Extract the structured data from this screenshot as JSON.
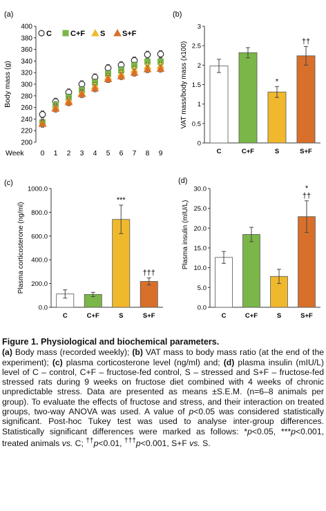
{
  "chart_data": [
    {
      "panel": "(a)",
      "type": "line",
      "ylabel": "Body mass (g)",
      "xlabel": "Week",
      "ylim": [
        200,
        400
      ],
      "yticks": [
        "200",
        "220",
        "240",
        "260",
        "280",
        "300",
        "320",
        "340",
        "360",
        "380",
        "400"
      ],
      "x": [
        0,
        1,
        2,
        3,
        4,
        5,
        6,
        7,
        8,
        9
      ],
      "legend_position": "top-left",
      "series": [
        {
          "name": "C",
          "marker": "circle",
          "color": "#ffffff",
          "stroke": "#333333",
          "values": [
            248,
            270,
            286,
            300,
            312,
            328,
            333,
            341,
            351,
            352
          ],
          "errors": [
            6,
            6,
            6,
            6,
            6,
            6,
            6,
            6,
            6,
            6
          ]
        },
        {
          "name": "C+F",
          "marker": "square",
          "color": "#7ab648",
          "stroke": "#7ab648",
          "values": [
            234,
            264,
            277,
            290,
            303,
            318,
            324,
            332,
            339,
            339
          ],
          "errors": [
            6,
            6,
            6,
            6,
            6,
            6,
            6,
            6,
            6,
            6
          ]
        },
        {
          "name": "S",
          "marker": "triangle",
          "color": "#f0b92d",
          "stroke": "#f0b92d",
          "values": [
            232,
            260,
            272,
            285,
            297,
            312,
            318,
            325,
            331,
            332
          ],
          "errors": [
            6,
            6,
            6,
            6,
            6,
            6,
            6,
            6,
            6,
            6
          ]
        },
        {
          "name": "S+F",
          "marker": "triangle",
          "color": "#d8702b",
          "stroke": "#d8702b",
          "values": [
            232,
            258,
            269,
            283,
            293,
            309,
            314,
            320,
            326,
            327
          ],
          "errors": [
            6,
            6,
            6,
            6,
            6,
            6,
            6,
            6,
            6,
            6
          ]
        }
      ]
    },
    {
      "panel": "(b)",
      "type": "bar",
      "ylabel": "VAT mass/body mass (x100)",
      "ylim": [
        0,
        3
      ],
      "yticks": [
        "0",
        "0.5",
        "1",
        "1.5",
        "2",
        "2.5",
        "3"
      ],
      "categories": [
        "C",
        "C+F",
        "S",
        "S+F"
      ],
      "values": [
        1.98,
        2.32,
        1.31,
        2.24
      ],
      "errors": [
        0.17,
        0.13,
        0.14,
        0.24
      ],
      "colors": [
        "#ffffff",
        "#7ab648",
        "#f0b92d",
        "#d8702b"
      ],
      "annotations": [
        "",
        "",
        "*",
        "††"
      ]
    },
    {
      "panel": "(c)",
      "type": "bar",
      "ylabel": "Plasma corticosterone (ng/ml)",
      "ylim": [
        0,
        1000
      ],
      "yticks": [
        "0.0",
        "200.0",
        "400.0",
        "600.0",
        "800.0",
        "1000.0"
      ],
      "categories": [
        "C",
        "C+F",
        "S",
        "S+F"
      ],
      "values": [
        112,
        108,
        740,
        218
      ],
      "errors": [
        35,
        18,
        120,
        30
      ],
      "colors": [
        "#ffffff",
        "#7ab648",
        "#f0b92d",
        "#d8702b"
      ],
      "annotations": [
        "",
        "",
        "***",
        "†††"
      ]
    },
    {
      "panel": "(d)",
      "type": "bar",
      "ylabel": "Plasma insulin (mIU/L)",
      "ylim": [
        0,
        30
      ],
      "yticks": [
        "0.0",
        "5.0",
        "10.0",
        "15.0",
        "20.0",
        "25.0",
        "30.0"
      ],
      "categories": [
        "C",
        "C+F",
        "S",
        "S+F"
      ],
      "values": [
        12.6,
        18.4,
        7.8,
        22.9
      ],
      "errors": [
        1.5,
        1.8,
        1.8,
        4.0
      ],
      "colors": [
        "#ffffff",
        "#7ab648",
        "#f0b92d",
        "#d8702b"
      ],
      "annotations": [
        "",
        "",
        "",
        "*\n††"
      ]
    }
  ],
  "caption": {
    "title": "Figure 1. Physiological and biochemical parameters.",
    "label_a": "(a)",
    "text_a": " Body mass (recorded weekly); ",
    "label_b": "(b)",
    "text_b": " VAT mass to body mass ratio (at the end of the experiment); ",
    "label_c": "(c)",
    "text_c": " plasma corticosterone level (ng/ml) and; ",
    "label_d": "(d)",
    "text_d": " plasma insulin (mIU/L) level of C – control, C+F – fructose-fed control, S – stressed and S+F – fructose-fed stressed rats during 9 weeks on fructose diet combined with 4 weeks of chronic unpredictable stress. Data are presented as means ±S.E.M. (n=6–8 animals per group). To evaluate the effects of fructose and stress, and their interaction on treated groups, two-way ANOVA was used. A value of ",
    "p_italic": "p",
    "text_e": "<0.05 was considered statistically significant. Post-hoc Tukey test was used to analyse inter-group differences. Statistically significant differences were marked as follows: *",
    "p1": "p",
    "text_f": "<0.05, ***",
    "p2": "p",
    "text_g": "<0.001, treated animals ",
    "vs1": "vs.",
    "text_h": " C; ",
    "sup1": "††",
    "p3": "p",
    "text_i": "<0.01, ",
    "sup2": "†††",
    "p4": "p",
    "text_j": "<0.001, S+F ",
    "vs2": "vs.",
    "text_k": " S."
  }
}
